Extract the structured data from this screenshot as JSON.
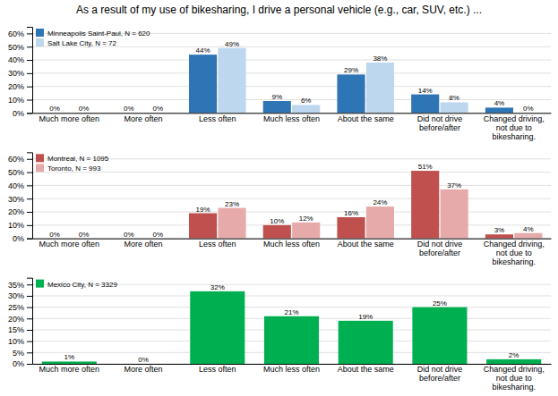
{
  "chart_data": [
    {
      "type": "bar",
      "title": "As a result of my use of bikesharing, I drive a personal vehicle (e.g., car, SUV, etc.) ...",
      "categories": [
        "Much more often",
        "More often",
        "Less often",
        "Much less often",
        "About the same",
        "Did not drive\nbefore/after",
        "Changed driving,\nnot due to\nbikesharing."
      ],
      "series": [
        {
          "name": "Minneapolis Saint-Paul, N = 620",
          "color": "#2E75B6",
          "values": [
            0,
            0,
            44,
            9,
            29,
            14,
            4
          ],
          "value_labels": [
            "0%",
            "0%",
            "44%",
            "9%",
            "29%",
            "14%",
            "4%"
          ]
        },
        {
          "name": "Salt Lake City, N = 72",
          "color": "#BDD7EE",
          "values": [
            0,
            0,
            49,
            6,
            38,
            8,
            0
          ],
          "value_labels": [
            "0%",
            "0%",
            "49%",
            "6%",
            "38%",
            "8%",
            "0%"
          ]
        }
      ],
      "ylim": [
        0,
        65
      ],
      "yticks": [
        {
          "value": 0,
          "label": "0%"
        },
        {
          "value": 10,
          "label": "10%"
        },
        {
          "value": 20,
          "label": "20%"
        },
        {
          "value": 30,
          "label": "30%"
        },
        {
          "value": 40,
          "label": "40%"
        },
        {
          "value": 50,
          "label": "50%"
        },
        {
          "value": 60,
          "label": "60%"
        }
      ],
      "grid": true,
      "legend": "upper-left",
      "data_labels": true
    },
    {
      "type": "bar",
      "categories": [
        "Much more often",
        "More often",
        "Less often",
        "Much less often",
        "About the same",
        "Did not drive\nbefore/after",
        "Changed driving,\nnot due to\nbikesharing."
      ],
      "series": [
        {
          "name": "Montreal, N = 1095",
          "color": "#C0504D",
          "values": [
            0,
            0,
            19,
            10,
            16,
            51,
            3
          ],
          "value_labels": [
            "0%",
            "0%",
            "19%",
            "10%",
            "16%",
            "51%",
            "3%"
          ]
        },
        {
          "name": "Toronto, N = 993",
          "color": "#E6AAAA",
          "values": [
            0,
            0,
            23,
            12,
            24,
            37,
            4
          ],
          "value_labels": [
            "0%",
            "0%",
            "23%",
            "12%",
            "24%",
            "37%",
            "4%"
          ]
        }
      ],
      "ylim": [
        0,
        65
      ],
      "yticks": [
        {
          "value": 0,
          "label": "0%"
        },
        {
          "value": 10,
          "label": "10%"
        },
        {
          "value": 20,
          "label": "20%"
        },
        {
          "value": 30,
          "label": "30%"
        },
        {
          "value": 40,
          "label": "40%"
        },
        {
          "value": 50,
          "label": "50%"
        },
        {
          "value": 60,
          "label": "60%"
        }
      ],
      "grid": true,
      "legend": "upper-left",
      "data_labels": true
    },
    {
      "type": "bar",
      "categories": [
        "Much more often",
        "More often",
        "Less often",
        "Much less often",
        "About the same",
        "Did not drive\nbefore/after",
        "Changed driving,\nnot due to\nbikesharing."
      ],
      "series": [
        {
          "name": "Mexico City, N = 3329",
          "color": "#00B050",
          "values": [
            1,
            0,
            32,
            21,
            19,
            25,
            2
          ],
          "value_labels": [
            "1%",
            "0%",
            "32%",
            "21%",
            "19%",
            "25%",
            "2%"
          ]
        }
      ],
      "ylim": [
        0,
        38
      ],
      "yticks": [
        {
          "value": 0,
          "label": "0%"
        },
        {
          "value": 5,
          "label": "5%"
        },
        {
          "value": 10,
          "label": "10%"
        },
        {
          "value": 15,
          "label": "15%"
        },
        {
          "value": 20,
          "label": "20%"
        },
        {
          "value": 25,
          "label": "25%"
        },
        {
          "value": 30,
          "label": "30%"
        },
        {
          "value": 35,
          "label": "35%"
        }
      ],
      "grid": true,
      "legend": "upper-left",
      "data_labels": true
    }
  ]
}
